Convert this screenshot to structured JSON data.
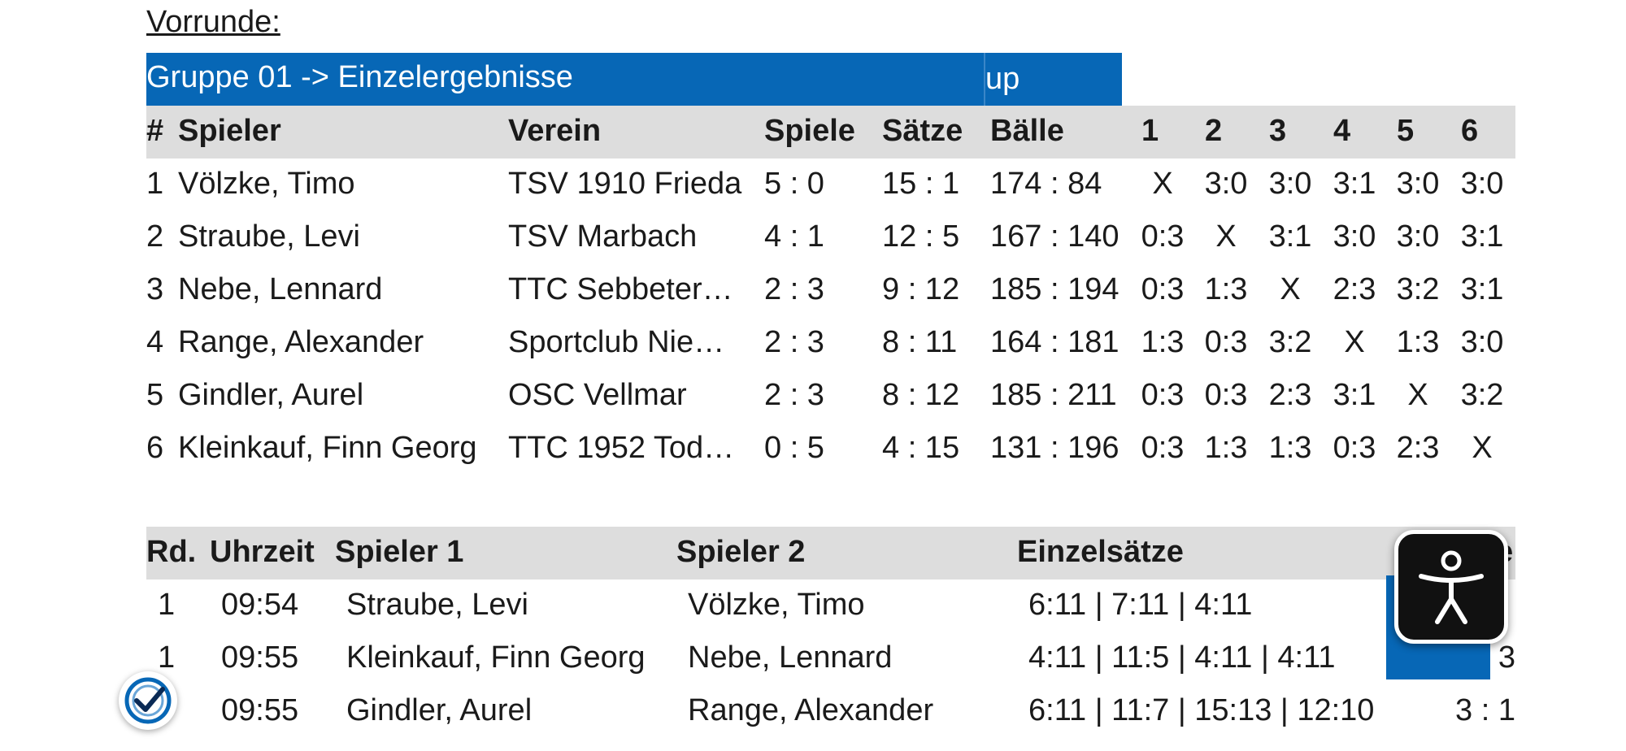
{
  "section_title": "Vorrunde:",
  "group": {
    "title": "Gruppe 01 -> Einzelergebnisse",
    "up_link": "up"
  },
  "results": {
    "headers": [
      "#",
      "Spieler",
      "Verein",
      "Spiele",
      "Sätze",
      "Bälle",
      "1",
      "2",
      "3",
      "4",
      "5",
      "6"
    ],
    "rows": [
      {
        "rank": "1",
        "player": "Völzke, Timo",
        "club": "TSV 1910 Frieda",
        "games": "5 : 0",
        "sets": "15 : 1",
        "balls": "174 : 84",
        "m": [
          "X",
          "3:0",
          "3:0",
          "3:1",
          "3:0",
          "3:0"
        ]
      },
      {
        "rank": "2",
        "player": "Straube, Levi",
        "club": "TSV Marbach",
        "games": "4 : 1",
        "sets": "12 : 5",
        "balls": "167 : 140",
        "m": [
          "0:3",
          "X",
          "3:1",
          "3:0",
          "3:0",
          "3:1"
        ]
      },
      {
        "rank": "3",
        "player": "Nebe, Lennard",
        "club": "TTC Sebbeter…",
        "games": "2 : 3",
        "sets": "9 : 12",
        "balls": "185 : 194",
        "m": [
          "0:3",
          "1:3",
          "X",
          "2:3",
          "3:2",
          "3:1"
        ]
      },
      {
        "rank": "4",
        "player": "Range, Alexander",
        "club": "Sportclub Nie…",
        "games": "2 : 3",
        "sets": "8 : 11",
        "balls": "164 : 181",
        "m": [
          "1:3",
          "0:3",
          "3:2",
          "X",
          "1:3",
          "3:0"
        ]
      },
      {
        "rank": "5",
        "player": "Gindler, Aurel",
        "club": "OSC Vellmar",
        "games": "2 : 3",
        "sets": "8 : 12",
        "balls": "185 : 211",
        "m": [
          "0:3",
          "0:3",
          "2:3",
          "3:1",
          "X",
          "3:2"
        ]
      },
      {
        "rank": "6",
        "player": "Kleinkauf, Finn Georg",
        "club": "TTC 1952 Tod…",
        "games": "0 : 5",
        "sets": "4 : 15",
        "balls": "131 : 196",
        "m": [
          "0:3",
          "1:3",
          "1:3",
          "0:3",
          "2:3",
          "X"
        ]
      }
    ]
  },
  "matches": {
    "headers": [
      "Rd.",
      "Uhrzeit",
      "Spieler 1",
      "Spieler 2",
      "Einzelsätze",
      "e"
    ],
    "rows": [
      {
        "rd": "1",
        "time": "09:54",
        "p1": "Straube, Levi",
        "p2": "Völzke, Timo",
        "sets": "6:11 | 7:11 | 4:11",
        "result": ""
      },
      {
        "rd": "1",
        "time": "09:55",
        "p1": "Kleinkauf, Finn Georg",
        "p2": "Nebe, Lennard",
        "sets": "4:11 | 11:5 | 4:11 | 4:11",
        "result": "3"
      },
      {
        "rd": ".",
        "time": "09:55",
        "p1": "Gindler, Aurel",
        "p2": "Range, Alexander",
        "sets": "6:11 | 11:7 | 15:13 | 12:10",
        "result": "3 : 1"
      }
    ]
  },
  "colors": {
    "accent": "#0767b6",
    "header_bg": "#dddddd"
  },
  "icons": {
    "accessibility": "accessibility-icon",
    "trust_badge": "check-badge-icon"
  }
}
